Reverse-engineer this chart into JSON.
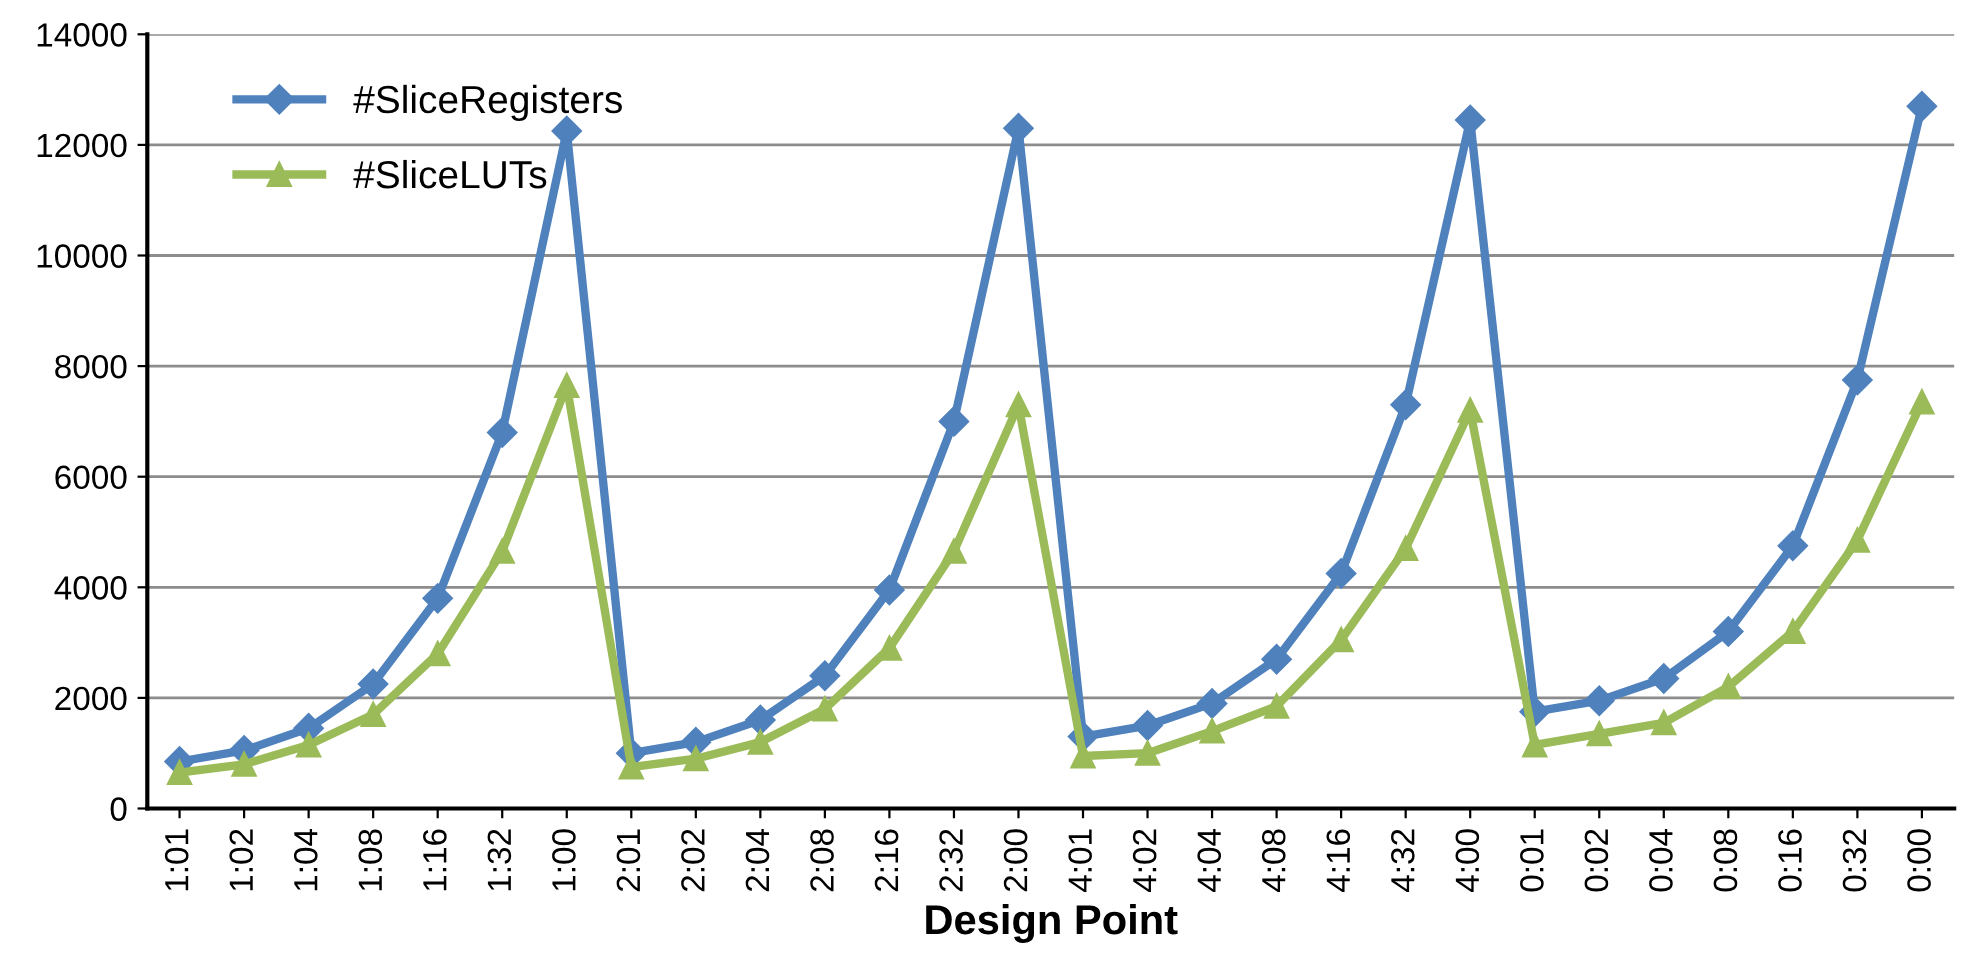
{
  "chart_data": {
    "type": "line",
    "xlabel": "Design Point",
    "categories": [
      "1:01",
      "1:02",
      "1:04",
      "1:08",
      "1:16",
      "1:32",
      "1:00",
      "2:01",
      "2:02",
      "2:04",
      "2:08",
      "2:16",
      "2:32",
      "2:00",
      "4:01",
      "4:02",
      "4:04",
      "4:08",
      "4:16",
      "4:32",
      "4:00",
      "0:01",
      "0:02",
      "0:04",
      "0:08",
      "0:16",
      "0:32",
      "0:00"
    ],
    "series": [
      {
        "name": "#SliceRegisters",
        "color": "#4f81bd",
        "marker": "diamond",
        "values": [
          850,
          1050,
          1450,
          2250,
          3800,
          6800,
          12250,
          1000,
          1200,
          1600,
          2400,
          3950,
          7000,
          12300,
          1300,
          1500,
          1900,
          2700,
          4250,
          7300,
          12450,
          1750,
          1950,
          2350,
          3200,
          4750,
          7750,
          12700
        ]
      },
      {
        "name": "#SliceLUTs",
        "color": "#9bbb59",
        "marker": "triangle",
        "values": [
          650,
          800,
          1150,
          1700,
          2800,
          4650,
          7650,
          750,
          900,
          1200,
          1800,
          2900,
          4650,
          7300,
          950,
          1000,
          1400,
          1850,
          3050,
          4700,
          7200,
          1150,
          1350,
          1550,
          2200,
          3200,
          4850,
          7350
        ]
      }
    ],
    "ylim": [
      0,
      14000
    ],
    "yticks": [
      0,
      2000,
      4000,
      6000,
      8000,
      10000,
      12000,
      14000
    ],
    "grid": "y",
    "legend": "top left",
    "line_style": "solid"
  }
}
